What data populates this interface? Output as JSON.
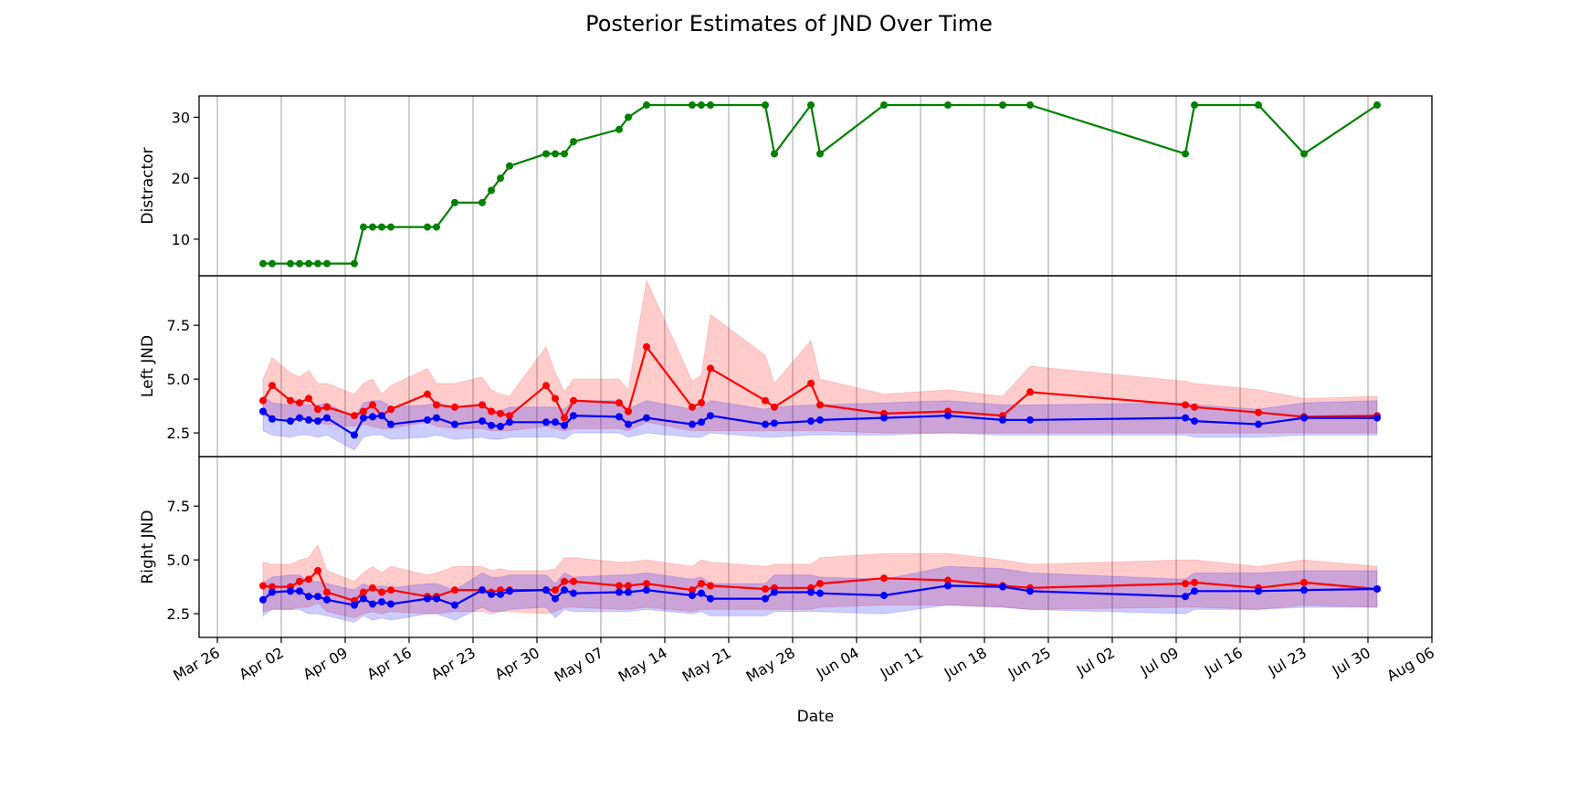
{
  "title": "Posterior Estimates of JND Over Time",
  "colors": {
    "distractor": "#008000",
    "red_series": "#ff0000",
    "blue_series": "#0000ff",
    "red_band": "#ff0000",
    "blue_band": "#0000ff",
    "grid": "#b0b0b0",
    "axes": "#000000"
  },
  "chart_data": [
    {
      "type": "line",
      "panel": "top",
      "ylabel": "Distractor",
      "ylim": [
        4,
        33.5
      ],
      "yticks": [
        10,
        20,
        30
      ],
      "grid": "x",
      "series": [
        {
          "color": "#008000",
          "x": [
            "2025-03-31",
            "2025-04-01",
            "2025-04-03",
            "2025-04-04",
            "2025-04-05",
            "2025-04-06",
            "2025-04-07",
            "2025-04-10",
            "2025-04-11",
            "2025-04-12",
            "2025-04-13",
            "2025-04-14",
            "2025-04-18",
            "2025-04-19",
            "2025-04-21",
            "2025-04-24",
            "2025-04-25",
            "2025-04-26",
            "2025-04-27",
            "2025-05-01",
            "2025-05-02",
            "2025-05-03",
            "2025-05-04",
            "2025-05-09",
            "2025-05-10",
            "2025-05-12",
            "2025-05-17",
            "2025-05-18",
            "2025-05-19",
            "2025-05-25",
            "2025-05-26",
            "2025-05-30",
            "2025-05-31",
            "2025-06-07",
            "2025-06-14",
            "2025-06-20",
            "2025-06-23",
            "2025-07-10",
            "2025-07-11",
            "2025-07-18",
            "2025-07-23",
            "2025-07-31"
          ],
          "y": [
            6,
            6,
            6,
            6,
            6,
            6,
            6,
            6,
            12,
            12,
            12,
            12,
            12,
            12,
            16,
            16,
            18,
            20,
            22,
            24,
            24,
            24,
            26,
            28,
            30,
            32,
            32,
            32,
            32,
            32,
            24,
            32,
            24,
            32,
            32,
            32,
            32,
            24,
            32,
            32,
            24,
            32
          ]
        }
      ]
    },
    {
      "type": "line",
      "panel": "middle",
      "ylabel": "Left JND",
      "ylim": [
        1.4,
        9.8
      ],
      "yticks": [
        2.5,
        5.0,
        7.5
      ],
      "ytick_labels": [
        "2.5",
        "5.0",
        "7.5"
      ],
      "grid": "x",
      "series": [
        {
          "color": "#ff0000",
          "x": [
            "2025-03-31",
            "2025-04-01",
            "2025-04-03",
            "2025-04-04",
            "2025-04-05",
            "2025-04-06",
            "2025-04-07",
            "2025-04-10",
            "2025-04-11",
            "2025-04-12",
            "2025-04-13",
            "2025-04-14",
            "2025-04-18",
            "2025-04-19",
            "2025-04-21",
            "2025-04-24",
            "2025-04-25",
            "2025-04-26",
            "2025-04-27",
            "2025-05-01",
            "2025-05-02",
            "2025-05-03",
            "2025-05-04",
            "2025-05-09",
            "2025-05-10",
            "2025-05-12",
            "2025-05-17",
            "2025-05-18",
            "2025-05-19",
            "2025-05-25",
            "2025-05-26",
            "2025-05-30",
            "2025-05-31",
            "2025-06-07",
            "2025-06-14",
            "2025-06-20",
            "2025-06-23",
            "2025-07-10",
            "2025-07-11",
            "2025-07-18",
            "2025-07-23",
            "2025-07-31"
          ],
          "y": [
            4.0,
            4.7,
            4.0,
            3.9,
            4.1,
            3.6,
            3.7,
            3.3,
            3.5,
            3.8,
            3.3,
            3.6,
            4.3,
            3.8,
            3.7,
            3.8,
            3.5,
            3.4,
            3.3,
            4.7,
            4.1,
            3.2,
            4.0,
            3.9,
            3.5,
            6.5,
            3.7,
            3.9,
            5.5,
            4.0,
            3.7,
            4.8,
            3.8,
            3.4,
            3.5,
            3.3,
            4.4,
            3.8,
            3.7,
            3.45,
            3.25,
            3.3
          ],
          "lower": [
            3.3,
            3.3,
            3.1,
            3.1,
            3.1,
            3.0,
            2.9,
            2.8,
            2.9,
            2.8,
            2.7,
            2.7,
            3.0,
            2.8,
            2.7,
            2.7,
            2.6,
            2.6,
            2.6,
            2.8,
            2.7,
            2.6,
            2.7,
            2.7,
            2.6,
            3.0,
            2.6,
            2.6,
            2.6,
            2.6,
            2.6,
            2.6,
            2.6,
            2.5,
            2.5,
            2.5,
            2.5,
            2.5,
            2.5,
            2.5,
            2.5,
            2.5
          ],
          "upper": [
            5.0,
            6.0,
            5.3,
            5.1,
            5.4,
            4.8,
            4.8,
            4.3,
            4.8,
            5.0,
            4.3,
            4.7,
            5.5,
            4.8,
            4.8,
            5.1,
            4.5,
            4.3,
            4.2,
            6.5,
            5.3,
            4.4,
            5.0,
            5.0,
            4.5,
            9.6,
            4.9,
            5.2,
            8.0,
            6.1,
            4.8,
            6.8,
            5.0,
            4.3,
            4.5,
            4.2,
            5.6,
            4.9,
            4.8,
            4.5,
            4.1,
            4.2
          ]
        },
        {
          "color": "#0000ff",
          "x": [
            "2025-03-31",
            "2025-04-01",
            "2025-04-03",
            "2025-04-04",
            "2025-04-05",
            "2025-04-06",
            "2025-04-07",
            "2025-04-10",
            "2025-04-11",
            "2025-04-12",
            "2025-04-13",
            "2025-04-14",
            "2025-04-18",
            "2025-04-19",
            "2025-04-21",
            "2025-04-24",
            "2025-04-25",
            "2025-04-26",
            "2025-04-27",
            "2025-05-01",
            "2025-05-02",
            "2025-05-03",
            "2025-05-04",
            "2025-05-09",
            "2025-05-10",
            "2025-05-12",
            "2025-05-17",
            "2025-05-18",
            "2025-05-19",
            "2025-05-25",
            "2025-05-26",
            "2025-05-30",
            "2025-05-31",
            "2025-06-07",
            "2025-06-14",
            "2025-06-20",
            "2025-06-23",
            "2025-07-10",
            "2025-07-11",
            "2025-07-18",
            "2025-07-23",
            "2025-07-31"
          ],
          "y": [
            3.5,
            3.15,
            3.05,
            3.2,
            3.1,
            3.05,
            3.2,
            2.4,
            3.2,
            3.25,
            3.3,
            2.9,
            3.1,
            3.2,
            2.9,
            3.05,
            2.85,
            2.8,
            3.0,
            3.0,
            3.0,
            2.85,
            3.3,
            3.25,
            2.9,
            3.2,
            2.9,
            3.0,
            3.3,
            2.9,
            2.95,
            3.05,
            3.1,
            3.2,
            3.3,
            3.1,
            3.1,
            3.2,
            3.05,
            2.9,
            3.2,
            3.2
          ],
          "lower": [
            2.6,
            2.4,
            2.3,
            2.4,
            2.4,
            2.3,
            2.4,
            1.7,
            2.3,
            2.4,
            2.4,
            2.2,
            2.3,
            2.4,
            2.2,
            2.3,
            2.2,
            2.2,
            2.3,
            2.3,
            2.3,
            2.2,
            2.5,
            2.5,
            2.3,
            2.5,
            2.3,
            2.3,
            2.5,
            2.3,
            2.3,
            2.4,
            2.4,
            2.4,
            2.5,
            2.4,
            2.4,
            2.4,
            2.3,
            2.3,
            2.4,
            2.4
          ],
          "upper": [
            4.2,
            3.9,
            3.8,
            3.9,
            3.8,
            3.8,
            3.9,
            3.2,
            3.9,
            4.0,
            4.0,
            3.7,
            3.8,
            3.9,
            3.7,
            3.8,
            3.6,
            3.5,
            3.7,
            3.7,
            3.7,
            3.6,
            4.0,
            4.0,
            3.6,
            4.0,
            3.6,
            3.7,
            4.0,
            3.6,
            3.7,
            3.8,
            3.8,
            3.9,
            4.0,
            3.8,
            3.8,
            3.9,
            3.8,
            3.6,
            3.9,
            4.0
          ]
        }
      ]
    },
    {
      "type": "line",
      "panel": "bottom",
      "ylabel": "Right JND",
      "ylim": [
        1.4,
        9.8
      ],
      "yticks": [
        2.5,
        5.0,
        7.5
      ],
      "ytick_labels": [
        "2.5",
        "5.0",
        "7.5"
      ],
      "grid": "x",
      "series": [
        {
          "color": "#ff0000",
          "x": [
            "2025-03-31",
            "2025-04-01",
            "2025-04-03",
            "2025-04-04",
            "2025-04-05",
            "2025-04-06",
            "2025-04-07",
            "2025-04-10",
            "2025-04-11",
            "2025-04-12",
            "2025-04-13",
            "2025-04-14",
            "2025-04-18",
            "2025-04-19",
            "2025-04-21",
            "2025-04-24",
            "2025-04-25",
            "2025-04-26",
            "2025-04-27",
            "2025-05-01",
            "2025-05-02",
            "2025-05-03",
            "2025-05-04",
            "2025-05-09",
            "2025-05-10",
            "2025-05-12",
            "2025-05-17",
            "2025-05-18",
            "2025-05-19",
            "2025-05-25",
            "2025-05-26",
            "2025-05-30",
            "2025-05-31",
            "2025-06-07",
            "2025-06-14",
            "2025-06-20",
            "2025-06-23",
            "2025-07-10",
            "2025-07-11",
            "2025-07-18",
            "2025-07-23",
            "2025-07-31"
          ],
          "y": [
            3.8,
            3.75,
            3.75,
            4.0,
            4.1,
            4.5,
            3.5,
            3.1,
            3.5,
            3.7,
            3.5,
            3.6,
            3.3,
            3.3,
            3.6,
            3.6,
            3.5,
            3.6,
            3.6,
            3.6,
            3.6,
            4.0,
            4.0,
            3.8,
            3.8,
            3.9,
            3.6,
            3.9,
            3.8,
            3.65,
            3.7,
            3.7,
            3.9,
            4.15,
            4.05,
            3.8,
            3.7,
            3.9,
            3.95,
            3.7,
            3.95,
            3.65
          ],
          "lower": [
            2.6,
            2.7,
            2.7,
            2.8,
            2.8,
            3.0,
            2.6,
            2.3,
            2.5,
            2.6,
            2.5,
            2.6,
            2.5,
            2.5,
            2.6,
            2.6,
            2.5,
            2.6,
            2.6,
            2.5,
            2.6,
            2.8,
            2.8,
            2.7,
            2.7,
            2.8,
            2.6,
            2.7,
            2.7,
            2.7,
            2.7,
            2.7,
            2.8,
            2.9,
            2.9,
            2.8,
            2.7,
            2.8,
            2.8,
            2.7,
            2.9,
            2.8
          ],
          "upper": [
            4.9,
            4.8,
            4.8,
            5.0,
            5.1,
            5.7,
            4.5,
            4.0,
            4.4,
            4.7,
            4.4,
            4.7,
            4.3,
            4.4,
            4.7,
            4.7,
            4.5,
            4.6,
            4.5,
            4.5,
            4.6,
            5.1,
            5.1,
            4.9,
            4.9,
            5.0,
            4.7,
            5.0,
            4.9,
            4.7,
            4.8,
            4.8,
            5.1,
            5.3,
            5.3,
            5.0,
            4.8,
            5.0,
            5.0,
            4.7,
            5.0,
            4.7
          ]
        },
        {
          "color": "#0000ff",
          "x": [
            "2025-03-31",
            "2025-04-01",
            "2025-04-03",
            "2025-04-04",
            "2025-04-05",
            "2025-04-06",
            "2025-04-07",
            "2025-04-10",
            "2025-04-11",
            "2025-04-12",
            "2025-04-13",
            "2025-04-14",
            "2025-04-18",
            "2025-04-19",
            "2025-04-21",
            "2025-04-24",
            "2025-04-25",
            "2025-04-26",
            "2025-04-27",
            "2025-05-01",
            "2025-05-02",
            "2025-05-03",
            "2025-05-04",
            "2025-05-09",
            "2025-05-10",
            "2025-05-12",
            "2025-05-17",
            "2025-05-18",
            "2025-05-19",
            "2025-05-25",
            "2025-05-26",
            "2025-05-30",
            "2025-05-31",
            "2025-06-07",
            "2025-06-14",
            "2025-06-20",
            "2025-06-23",
            "2025-07-10",
            "2025-07-11",
            "2025-07-18",
            "2025-07-23",
            "2025-07-31"
          ],
          "y": [
            3.15,
            3.5,
            3.55,
            3.55,
            3.3,
            3.3,
            3.15,
            2.9,
            3.2,
            2.95,
            3.05,
            2.95,
            3.2,
            3.2,
            2.9,
            3.6,
            3.4,
            3.4,
            3.55,
            3.6,
            3.2,
            3.6,
            3.45,
            3.5,
            3.5,
            3.6,
            3.35,
            3.45,
            3.2,
            3.2,
            3.5,
            3.5,
            3.45,
            3.35,
            3.8,
            3.75,
            3.55,
            3.3,
            3.55,
            3.55,
            3.6,
            3.65
          ],
          "lower": [
            2.4,
            2.7,
            2.7,
            2.7,
            2.5,
            2.5,
            2.4,
            2.1,
            2.4,
            2.2,
            2.3,
            2.2,
            2.5,
            2.5,
            2.2,
            2.8,
            2.6,
            2.6,
            2.7,
            2.8,
            2.3,
            2.7,
            2.6,
            2.6,
            2.6,
            2.7,
            2.5,
            2.6,
            2.4,
            2.4,
            2.6,
            2.6,
            2.6,
            2.5,
            2.9,
            2.8,
            2.7,
            2.5,
            2.7,
            2.7,
            2.8,
            2.8
          ],
          "upper": [
            3.9,
            4.2,
            4.3,
            4.3,
            4.0,
            4.0,
            3.9,
            3.6,
            3.9,
            3.7,
            3.8,
            3.7,
            3.9,
            3.9,
            3.6,
            4.4,
            4.2,
            4.2,
            4.3,
            4.3,
            3.9,
            4.4,
            4.2,
            4.3,
            4.3,
            4.4,
            4.1,
            4.2,
            3.9,
            3.9,
            4.3,
            4.3,
            4.2,
            4.1,
            4.7,
            4.6,
            4.4,
            4.1,
            4.4,
            4.4,
            4.5,
            4.5
          ]
        }
      ]
    }
  ],
  "x_axis": {
    "label": "Date",
    "xlim": [
      "2025-03-24",
      "2025-08-06"
    ],
    "ticks": [
      "2025-03-26",
      "2025-04-02",
      "2025-04-09",
      "2025-04-16",
      "2025-04-23",
      "2025-04-30",
      "2025-05-07",
      "2025-05-14",
      "2025-05-21",
      "2025-05-28",
      "2025-06-04",
      "2025-06-11",
      "2025-06-18",
      "2025-06-25",
      "2025-07-02",
      "2025-07-09",
      "2025-07-16",
      "2025-07-23",
      "2025-07-30",
      "2025-08-06"
    ],
    "tick_labels": [
      "Mar 26",
      "Apr 02",
      "Apr 09",
      "Apr 16",
      "Apr 23",
      "Apr 30",
      "May 07",
      "May 14",
      "May 21",
      "May 28",
      "Jun 04",
      "Jun 11",
      "Jun 18",
      "Jun 25",
      "Jul 02",
      "Jul 09",
      "Jul 16",
      "Jul 23",
      "Jul 30",
      "Aug 06"
    ]
  }
}
